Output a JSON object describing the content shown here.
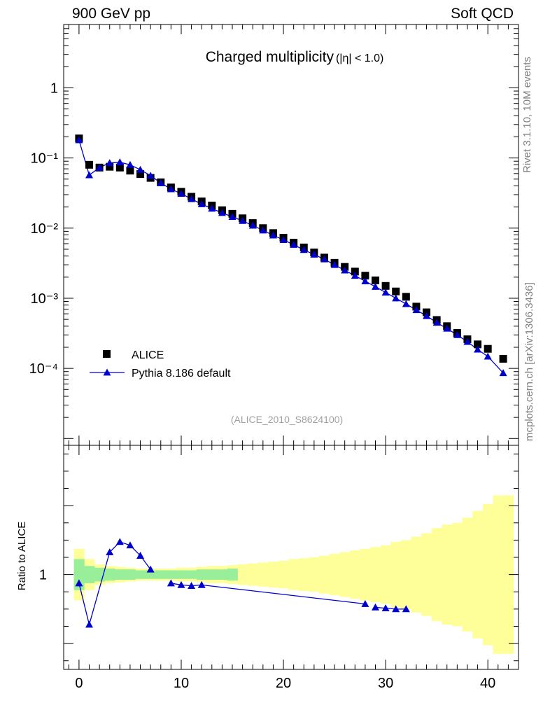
{
  "header": {
    "left_label": "900 GeV pp",
    "right_label": "Soft QCD"
  },
  "side_labels": {
    "rivet": "Rivet 3.1.10,  10M events",
    "mcplots": "mcplots.cern.ch [arXiv:1306.3436]"
  },
  "chart_data": [
    {
      "type": "scatter",
      "title": "Charged multiplicity",
      "title_suffix": "(|η| < 1.0)",
      "analysis_tag": "(ALICE_2010_S8624100)",
      "xlabel": "",
      "ylabel": "",
      "xlim": [
        -1.5,
        43
      ],
      "ylim": [
        8e-06,
        8
      ],
      "yscale": "log",
      "y_tick_labels": [
        "10⁻⁴",
        "10⁻³",
        "10⁻²",
        "10⁻¹",
        "1"
      ],
      "legend_position": "bottom-left",
      "series": [
        {
          "name": "ALICE",
          "marker": "square",
          "color": "#000000",
          "x": [
            0,
            1,
            2,
            3,
            4,
            5,
            6,
            7,
            8,
            9,
            10,
            11,
            12,
            13,
            14,
            15,
            16,
            17,
            18,
            19,
            20,
            21,
            22,
            23,
            24,
            25,
            26,
            27,
            28,
            29,
            30,
            31,
            32,
            33,
            34,
            35,
            36,
            37,
            38,
            39,
            40,
            41.5
          ],
          "y": [
            0.19,
            0.08,
            0.073,
            0.075,
            0.073,
            0.066,
            0.059,
            0.052,
            0.045,
            0.038,
            0.033,
            0.028,
            0.024,
            0.021,
            0.018,
            0.016,
            0.0138,
            0.0118,
            0.01,
            0.0085,
            0.0073,
            0.0062,
            0.0053,
            0.0045,
            0.0038,
            0.0032,
            0.0028,
            0.0024,
            0.0021,
            0.0018,
            0.0015,
            0.00125,
            0.00105,
            0.00076,
            0.00063,
            0.00049,
            0.0004,
            0.00032,
            0.00026,
            0.00022,
            0.00019,
            0.000137
          ]
        },
        {
          "name": "Pythia 8.186 default",
          "marker": "triangle",
          "color": "#0000cc",
          "x": [
            0,
            1,
            2,
            3,
            4,
            5,
            6,
            7,
            8,
            9,
            10,
            11,
            12,
            13,
            14,
            15,
            16,
            17,
            18,
            19,
            20,
            21,
            22,
            23,
            24,
            25,
            26,
            27,
            28,
            29,
            30,
            31,
            32,
            33,
            34,
            35,
            36,
            37,
            38,
            39,
            40,
            41.5
          ],
          "y": [
            0.18,
            0.057,
            0.073,
            0.085,
            0.087,
            0.08,
            0.068,
            0.056,
            0.044,
            0.036,
            0.031,
            0.026,
            0.022,
            0.019,
            0.0165,
            0.0145,
            0.0127,
            0.0109,
            0.0093,
            0.0079,
            0.0068,
            0.0058,
            0.0049,
            0.0042,
            0.0036,
            0.003,
            0.0025,
            0.0021,
            0.00175,
            0.00146,
            0.00121,
            0.001,
            0.00083,
            0.00068,
            0.00056,
            0.00045,
            0.00037,
            0.0003,
            0.00024,
            0.000186,
            0.000148,
            8.6e-05
          ]
        }
      ]
    },
    {
      "type": "line",
      "ylabel": "Ratio to ALICE",
      "xlabel": "",
      "xlim": [
        -1.5,
        43
      ],
      "ylim": [
        0.45,
        1.75
      ],
      "y_tick_labels": [
        "1"
      ],
      "x_tick_labels": [
        "0",
        "10",
        "20",
        "30",
        "40"
      ],
      "x_ticks": [
        0,
        10,
        20,
        30,
        40
      ],
      "bands": {
        "x_edges": [
          -0.5,
          0.5,
          1.5,
          2.5,
          3.5,
          4.5,
          5.5,
          6.5,
          7.5,
          8.5,
          9.5,
          10.5,
          11.5,
          12.5,
          13.5,
          14.5,
          15.5,
          16.5,
          17.5,
          18.5,
          19.5,
          20.5,
          21.5,
          22.5,
          23.5,
          24.5,
          25.5,
          26.5,
          27.5,
          28.5,
          29.5,
          30.5,
          31.5,
          32.5,
          33.5,
          34.5,
          35.5,
          36.5,
          37.5,
          38.5,
          39.5,
          40.5,
          42.5
        ],
        "yellow_half_width": [
          0.15,
          0.09,
          0.06,
          0.05,
          0.045,
          0.04,
          0.035,
          0.035,
          0.035,
          0.035,
          0.04,
          0.04,
          0.045,
          0.05,
          0.05,
          0.055,
          0.06,
          0.065,
          0.07,
          0.075,
          0.08,
          0.09,
          0.095,
          0.1,
          0.11,
          0.12,
          0.13,
          0.14,
          0.15,
          0.16,
          0.17,
          0.19,
          0.2,
          0.22,
          0.24,
          0.27,
          0.29,
          0.3,
          0.33,
          0.37,
          0.41,
          0.46
        ],
        "green_half_width": [
          0.09,
          0.05,
          0.04,
          0.035,
          0.03,
          0.03,
          0.025,
          0.025,
          0.025,
          0.025,
          0.025,
          0.025,
          0.03,
          0.03,
          0.03,
          0.035,
          0,
          0,
          0,
          0,
          0,
          0,
          0,
          0,
          0,
          0,
          0,
          0,
          0,
          0,
          0,
          0,
          0,
          0,
          0,
          0,
          0,
          0,
          0,
          0,
          0,
          0
        ]
      },
      "series": [
        {
          "name": "Pythia 8.186 default",
          "marker": "triangle",
          "color": "#0000cc",
          "x": [
            0,
            1,
            3,
            4,
            5,
            6,
            7,
            9,
            10,
            11,
            12,
            28,
            29,
            30,
            31,
            32
          ],
          "y": [
            0.95,
            0.71,
            1.13,
            1.19,
            1.17,
            1.11,
            1.03,
            0.95,
            0.94,
            0.935,
            0.94,
            0.83,
            0.81,
            0.805,
            0.8,
            0.8
          ]
        }
      ]
    }
  ]
}
